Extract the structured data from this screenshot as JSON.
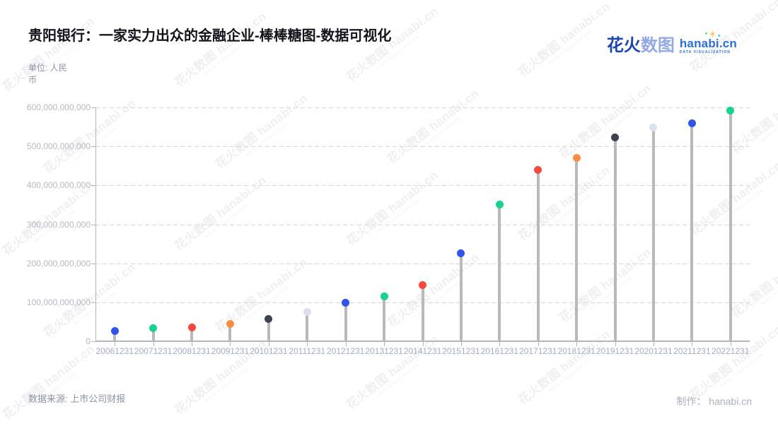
{
  "page": {
    "title": "贵阳银行：一家实力出众的金融企业-棒棒糖图-数据可视化",
    "unit_label": "单位: 人民币",
    "source_label": "数据来源: 上市公司财报",
    "credit_label": "制作： hanabi.cn"
  },
  "logo": {
    "zh_bold": "花火",
    "zh_light": "数图",
    "domain": "hanabi.cn",
    "tagline": "DATA VISUALIZATION",
    "colors": {
      "zh_bold": "#1c45ae",
      "zh_light": "#94a9e4",
      "domain_blue": "#2e6ed8",
      "spark_orange": "#f7a823",
      "spark_cyan": "#27c6d9",
      "spark_green": "#49c464"
    }
  },
  "watermark": {
    "text": "花火数图 hanabi.cn",
    "tagline": "DATA VISUALIZATION"
  },
  "chart_data": {
    "type": "scatter",
    "variant": "lollipop",
    "title": "贵阳银行：一家实力出众的金融企业-棒棒糖图-数据可视化",
    "xlabel": "",
    "ylabel": "单位: 人民币",
    "categories": [
      "20061231",
      "20071231",
      "20081231",
      "20091231",
      "20101231",
      "20111231",
      "20121231",
      "20131231",
      "20141231",
      "20151231",
      "20161231",
      "20171231",
      "20181231",
      "20191231",
      "20201231",
      "20211231",
      "20221231"
    ],
    "values": [
      26000000000,
      33000000000,
      36000000000,
      45000000000,
      58000000000,
      75000000000,
      98000000000,
      115000000000,
      145000000000,
      225000000000,
      350000000000,
      439000000000,
      470000000000,
      523000000000,
      549000000000,
      560000000000,
      592000000000
    ],
    "point_colors": [
      "#2f54eb",
      "#18d38e",
      "#f5493f",
      "#fb8c44",
      "#3d424e",
      "#dbe0ee",
      "#2f54eb",
      "#18d38e",
      "#f5493f",
      "#2f54eb",
      "#18d38e",
      "#f5493f",
      "#fb8c44",
      "#3d424e",
      "#dbe0ee",
      "#2f54eb",
      "#18d38e"
    ],
    "stem_color": "#b9b9b9",
    "ylim": [
      0,
      600000000000
    ],
    "ytick_interval": 100000000000,
    "ytick_labels": [
      "0",
      "100,000,000,000",
      "200,000,000,000",
      "300,000,000,000",
      "400,000,000,000",
      "500,000,000,000",
      "600,000,000,000"
    ],
    "grid": "dashed-horizontal",
    "legend": "none"
  }
}
